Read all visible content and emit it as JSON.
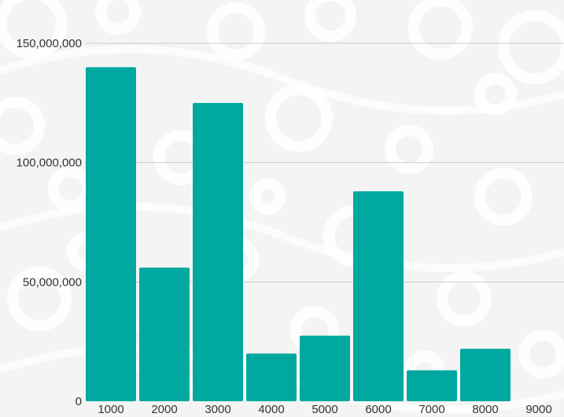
{
  "chart_data": {
    "type": "bar",
    "title": "",
    "xlabel": "",
    "ylabel": "",
    "categories": [
      "1000",
      "2000",
      "3000",
      "4000",
      "5000",
      "6000",
      "7000",
      "8000",
      "9000"
    ],
    "values": [
      140000000,
      56000000,
      125000000,
      20000000,
      27500000,
      88000000,
      13000000,
      22000000,
      0
    ],
    "ylim": [
      0,
      150000000
    ],
    "yticks": [
      0,
      50000000,
      100000000,
      150000000
    ],
    "ytick_labels": [
      "0",
      "50,000,000",
      "100,000,000",
      "150,000,000"
    ],
    "grid": true,
    "bar_color": "#00a8a0",
    "gridline_color": "#cccccc",
    "background_color": "#f4f4f4",
    "background_pattern_color": "#ffffff"
  }
}
